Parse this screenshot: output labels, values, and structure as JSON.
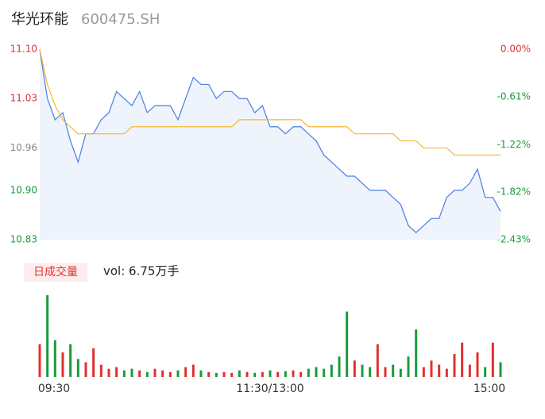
{
  "chart_data": [
    {
      "type": "line",
      "title": "华光环能",
      "subtitle": "600475.SH",
      "categories": [
        "09:30",
        null,
        null,
        null,
        null,
        null,
        null,
        null,
        null,
        null,
        null,
        null,
        null,
        null,
        null,
        null,
        null,
        null,
        null,
        null,
        null,
        null,
        null,
        null,
        null,
        null,
        null,
        null,
        null,
        null,
        "11:30/13:00",
        null,
        null,
        null,
        null,
        null,
        null,
        null,
        null,
        null,
        null,
        null,
        null,
        null,
        null,
        null,
        null,
        null,
        null,
        null,
        null,
        null,
        null,
        null,
        null,
        null,
        null,
        null,
        null,
        null,
        "15:00"
      ],
      "series": [
        {
          "name": "price",
          "color": "#4a7fe0",
          "values": [
            11.1,
            11.03,
            11.0,
            11.01,
            10.97,
            10.94,
            10.98,
            10.98,
            11.0,
            11.01,
            11.04,
            11.03,
            11.02,
            11.04,
            11.01,
            11.02,
            11.02,
            11.02,
            11.0,
            11.03,
            11.06,
            11.05,
            11.05,
            11.03,
            11.04,
            11.04,
            11.03,
            11.03,
            11.01,
            11.02,
            10.99,
            10.99,
            10.98,
            10.99,
            10.99,
            10.98,
            10.97,
            10.95,
            10.94,
            10.93,
            10.92,
            10.92,
            10.91,
            10.9,
            10.9,
            10.9,
            10.89,
            10.88,
            10.85,
            10.84,
            10.85,
            10.86,
            10.86,
            10.89,
            10.9,
            10.9,
            10.91,
            10.93,
            10.89,
            10.89,
            10.87
          ]
        },
        {
          "name": "average",
          "color": "#f5b731",
          "values": [
            11.1,
            11.05,
            11.02,
            11.0,
            10.99,
            10.98,
            10.98,
            10.98,
            10.98,
            10.98,
            10.98,
            10.98,
            10.99,
            10.99,
            10.99,
            10.99,
            10.99,
            10.99,
            10.99,
            10.99,
            10.99,
            10.99,
            10.99,
            10.99,
            10.99,
            10.99,
            11.0,
            11.0,
            11.0,
            11.0,
            11.0,
            11.0,
            11.0,
            11.0,
            11.0,
            10.99,
            10.99,
            10.99,
            10.99,
            10.99,
            10.99,
            10.98,
            10.98,
            10.98,
            10.98,
            10.98,
            10.98,
            10.97,
            10.97,
            10.97,
            10.96,
            10.96,
            10.96,
            10.96,
            10.95,
            10.95,
            10.95,
            10.95,
            10.95,
            10.95,
            10.95
          ]
        }
      ],
      "ylim": [
        10.83,
        11.1
      ],
      "yticks": [
        {
          "value": 11.1,
          "label": "11.10"
        },
        {
          "value": 11.03,
          "label": "11.03"
        },
        {
          "value": 10.96,
          "label": "10.96"
        },
        {
          "value": 10.9,
          "label": "10.90"
        },
        {
          "value": 10.83,
          "label": "10.83"
        }
      ],
      "y2lim": [
        -2.43,
        0
      ],
      "y2ticks": [
        {
          "value": 0,
          "label": "0.00%"
        },
        {
          "value": -0.61,
          "label": "-0.61%"
        },
        {
          "value": -1.22,
          "label": "-1.22%"
        },
        {
          "value": -1.82,
          "label": "-1.82%"
        },
        {
          "value": -2.43,
          "label": "-2.43%"
        }
      ]
    },
    {
      "type": "bar",
      "title": "日成交量",
      "subtitle": "vol: 6.75万手",
      "values": [
        40,
        100,
        45,
        30,
        40,
        22,
        18,
        35,
        15,
        10,
        12,
        8,
        10,
        8,
        6,
        10,
        8,
        6,
        8,
        12,
        15,
        8,
        6,
        5,
        6,
        5,
        8,
        6,
        5,
        6,
        8,
        6,
        7,
        8,
        6,
        10,
        12,
        10,
        15,
        25,
        80,
        20,
        15,
        12,
        40,
        12,
        15,
        10,
        25,
        58,
        12,
        20,
        15,
        10,
        28,
        42,
        15,
        30,
        12,
        42,
        18
      ],
      "ylim": [
        0,
        100
      ]
    }
  ]
}
